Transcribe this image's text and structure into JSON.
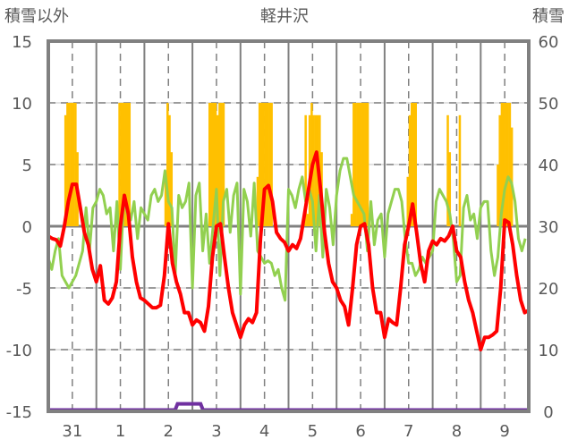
{
  "chart_data": {
    "type": "line",
    "title": "軽井沢",
    "ylabel_left": "積雪以外",
    "ylabel_right": "積雪",
    "ylim_left": [
      -15,
      15
    ],
    "yticks_left": [
      "15",
      "10",
      "5",
      "0",
      "-5",
      "-10",
      "-15"
    ],
    "ylim_right": [
      0,
      60
    ],
    "yticks_right": [
      "60",
      "50",
      "40",
      "30",
      "20",
      "10",
      "0"
    ],
    "x_days": 10,
    "xtick_labels": [
      "31",
      "1",
      "2",
      "3",
      "4",
      "5",
      "6",
      "7",
      "8",
      "9"
    ],
    "grid": true,
    "colors": {
      "temp": "#ff0000",
      "green": "#92d050",
      "bars": "#ffc000",
      "snow": "#7030a0",
      "axis": "#808080",
      "text": "#595959"
    },
    "series": [
      {
        "name": "red line (left axis), 2-hourly per day",
        "axis": "left",
        "per_day": [
          [
            -0.8,
            -1,
            -1.1,
            -1.6,
            0,
            2,
            3.4,
            3.4,
            1.5,
            -0.5,
            -1.5,
            -3.5
          ],
          [
            -4.5,
            -3.2,
            -6,
            -6.3,
            -5.8,
            -4.5,
            0,
            2.5,
            1,
            -2.5,
            -4.5,
            -5.8
          ],
          [
            -6,
            -6.3,
            -6.6,
            -6.6,
            -6.4,
            -4,
            0.2,
            -3,
            -4.5,
            -5.5,
            -7,
            -7
          ],
          [
            -8,
            -7.6,
            -7.8,
            -8.5,
            -6.5,
            -2.5,
            0,
            0.2,
            -2.5,
            -5,
            -7,
            -8
          ],
          [
            -9,
            -8,
            -7.5,
            -7.8,
            -7,
            -1,
            3,
            3.3,
            2,
            -0.5,
            -1,
            -1.3
          ],
          [
            -2,
            -1.5,
            -1.8,
            -1,
            1,
            3,
            5,
            6,
            3,
            -0.5,
            -3,
            -4.5
          ],
          [
            -5,
            -6,
            -6.5,
            -8,
            -5,
            -1.5,
            0,
            0.2,
            -1.5,
            -5,
            -7,
            -7
          ],
          [
            -9,
            -7.5,
            -7.8,
            -8,
            -5,
            -1.5,
            0,
            1.8,
            -0.5,
            -3,
            -4.5,
            -2
          ],
          [
            -1.2,
            -1.5,
            -1,
            -1.2,
            -0.8,
            0,
            -2,
            -2.5,
            -4.5,
            -6,
            -7,
            -8.5
          ],
          [
            -10,
            -9,
            -9,
            -8.8,
            -8.5,
            -5,
            0.5,
            0.3,
            -1.5,
            -4,
            -6,
            -7
          ]
        ]
      },
      {
        "name": "green line (left axis)",
        "axis": "left",
        "per_day": [
          [
            -2.6,
            -3.5,
            -2,
            -1,
            -4,
            -4.5,
            -5,
            -4.5,
            -4,
            -3,
            -2,
            1.5,
            -2,
            1.5
          ],
          [
            2,
            3,
            2.5,
            1,
            1.5,
            -2,
            2,
            -3.5,
            2.5,
            1,
            0.5,
            2,
            -1,
            1.5
          ],
          [
            1,
            0.5,
            2.5,
            3,
            2,
            2.5,
            4.5,
            2,
            1.5,
            -3.8,
            2.5,
            1.5,
            2,
            3.5
          ],
          [
            -5,
            2.5,
            3.5,
            -2,
            1,
            -3,
            0,
            3,
            -4,
            2,
            3,
            -0.5,
            2.5,
            3.5
          ],
          [
            -5.5,
            3,
            2,
            -0.8,
            3.5,
            -2,
            -2.5,
            -3,
            -2.8,
            -3,
            -4,
            -3.5,
            -5,
            -6
          ],
          [
            3,
            2.5,
            1.5,
            3,
            4,
            2,
            3,
            2,
            -2,
            2.5,
            -2.5,
            3,
            1.5,
            -1.5
          ],
          [
            2.5,
            4.5,
            5.5,
            5.5,
            4,
            2.5,
            2,
            1.5,
            1,
            -2,
            2,
            -1.5,
            0.5,
            1
          ],
          [
            -2.5,
            1,
            2,
            3,
            3,
            2,
            -1,
            -3,
            -3,
            -4,
            -3.5,
            -2.5,
            -3,
            -2.5
          ],
          [
            -2,
            2,
            3,
            2.5,
            2,
            1,
            -1,
            -4.5,
            -4,
            1.5,
            2.5,
            0.5,
            1,
            -1
          ],
          [
            1.5,
            2,
            2,
            -2,
            -4,
            -2.5,
            1,
            3,
            4,
            3.5,
            2,
            -1,
            -2,
            -1
          ]
        ]
      },
      {
        "name": "orange bars (left axis, hourly)",
        "axis": "left",
        "per_day": [
          {
            "start_hour": 8,
            "values": [
              9,
              10,
              10,
              10,
              10,
              10,
              6
            ]
          },
          {
            "start_hour": 10,
            "values": [
              1,
              10,
              10,
              10,
              10,
              10,
              10
            ]
          },
          {
            "start_hour": 10,
            "values": [
              4,
              10,
              9,
              6
            ]
          },
          {
            "start_hour": 8,
            "values": [
              10,
              10,
              10,
              10,
              9,
              10,
              10,
              10
            ]
          },
          {
            "start_hour": 8,
            "values": [
              4,
              10,
              10,
              10,
              10,
              10,
              10,
              10
            ]
          },
          {
            "start_hour": 8,
            "values": [
              9,
              1,
              9,
              10,
              9,
              9,
              9,
              9,
              6
            ]
          },
          {
            "start_hour": 7,
            "values": [
              1,
              10,
              10,
              10,
              10,
              10,
              10,
              10,
              10,
              1
            ]
          },
          {
            "start_hour": 11,
            "values": [
              4,
              9,
              10,
              10,
              10
            ]
          },
          {
            "start_hour": 7,
            "values": [
              9,
              6,
              0,
              0,
              0,
              0,
              9,
              0
            ]
          },
          {
            "start_hour": 8,
            "values": [
              5,
              9,
              10,
              10,
              10,
              10,
              10,
              8
            ]
          }
        ]
      },
      {
        "name": "積雪 (right axis)",
        "axis": "right",
        "points": [
          [
            0,
            0
          ],
          [
            2.64,
            0
          ],
          [
            2.69,
            1
          ],
          [
            3.17,
            1
          ],
          [
            3.22,
            0
          ],
          [
            10,
            0
          ]
        ]
      }
    ]
  }
}
